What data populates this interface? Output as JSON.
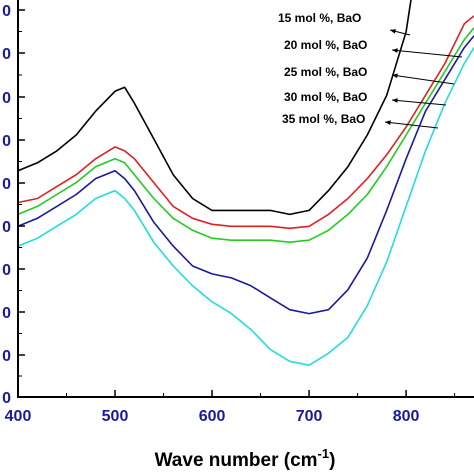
{
  "chart_data": {
    "type": "line",
    "xlabel": "Wave number (cm",
    "xlabel_sup": "-1",
    "xlabel_close": ")",
    "xlim": [
      400,
      870
    ],
    "ylim": [
      0,
      10
    ],
    "x_ticks": [
      "400",
      "500",
      "600",
      "700",
      "800"
    ],
    "y_tick_labels": [
      "0",
      "0",
      "0",
      "0",
      "0",
      "0",
      "0",
      "0",
      "0",
      "0"
    ],
    "grid": false,
    "legend_placement": "top-right",
    "series": [
      {
        "name": "15 mol %, BaO",
        "color": "#000000",
        "x": [
          400,
          420,
          440,
          460,
          480,
          500,
          510,
          520,
          540,
          560,
          580,
          600,
          620,
          640,
          660,
          680,
          700,
          720,
          740,
          760,
          780,
          800,
          810
        ],
        "y": [
          5.7,
          5.9,
          6.2,
          6.6,
          7.2,
          7.7,
          7.8,
          7.4,
          6.5,
          5.6,
          5.0,
          4.7,
          4.7,
          4.7,
          4.7,
          4.6,
          4.7,
          5.2,
          5.8,
          6.6,
          7.6,
          9.2,
          10.8
        ]
      },
      {
        "name": "20 mol %, BaO",
        "color": "#dd2222",
        "x": [
          400,
          420,
          440,
          460,
          480,
          500,
          510,
          520,
          540,
          560,
          580,
          600,
          620,
          640,
          660,
          680,
          700,
          720,
          740,
          760,
          780,
          800,
          820,
          840,
          860,
          870
        ],
        "y": [
          4.9,
          5.0,
          5.3,
          5.6,
          6.0,
          6.3,
          6.2,
          6.0,
          5.4,
          4.8,
          4.5,
          4.35,
          4.3,
          4.3,
          4.3,
          4.25,
          4.3,
          4.6,
          5.0,
          5.5,
          6.1,
          6.8,
          7.6,
          8.4,
          9.4,
          9.6
        ]
      },
      {
        "name": "25 mol %, BaO",
        "color": "#22cc22",
        "x": [
          400,
          420,
          440,
          460,
          480,
          500,
          510,
          520,
          540,
          560,
          580,
          600,
          620,
          640,
          660,
          680,
          700,
          720,
          740,
          760,
          780,
          800,
          820,
          840,
          860,
          870
        ],
        "y": [
          4.6,
          4.8,
          5.1,
          5.4,
          5.8,
          6.0,
          5.9,
          5.6,
          5.0,
          4.5,
          4.2,
          4.0,
          3.95,
          3.95,
          3.95,
          3.9,
          3.95,
          4.2,
          4.6,
          5.1,
          5.8,
          6.6,
          7.4,
          8.2,
          9.0,
          9.3
        ]
      },
      {
        "name": "30 mol %, BaO",
        "color": "#1a1aa0",
        "x": [
          400,
          420,
          440,
          460,
          480,
          500,
          510,
          520,
          540,
          560,
          580,
          600,
          620,
          640,
          660,
          680,
          700,
          720,
          740,
          760,
          780,
          800,
          820,
          840,
          860,
          870
        ],
        "y": [
          4.3,
          4.5,
          4.8,
          5.1,
          5.5,
          5.7,
          5.5,
          5.2,
          4.4,
          3.8,
          3.3,
          3.1,
          3.0,
          2.8,
          2.5,
          2.2,
          2.1,
          2.2,
          2.7,
          3.5,
          4.7,
          6.0,
          7.2,
          8.0,
          8.8,
          9.1
        ]
      },
      {
        "name": "35 mol %, BaO",
        "color": "#22dddd",
        "x": [
          400,
          420,
          440,
          460,
          480,
          500,
          510,
          520,
          540,
          560,
          580,
          600,
          620,
          640,
          660,
          680,
          700,
          720,
          740,
          760,
          780,
          800,
          820,
          840,
          860,
          870
        ],
        "y": [
          3.8,
          4.0,
          4.3,
          4.6,
          5.0,
          5.2,
          5.0,
          4.7,
          3.9,
          3.3,
          2.8,
          2.4,
          2.1,
          1.7,
          1.2,
          0.9,
          0.8,
          1.1,
          1.5,
          2.3,
          3.4,
          4.8,
          6.2,
          7.4,
          8.4,
          8.8
        ]
      }
    ]
  }
}
